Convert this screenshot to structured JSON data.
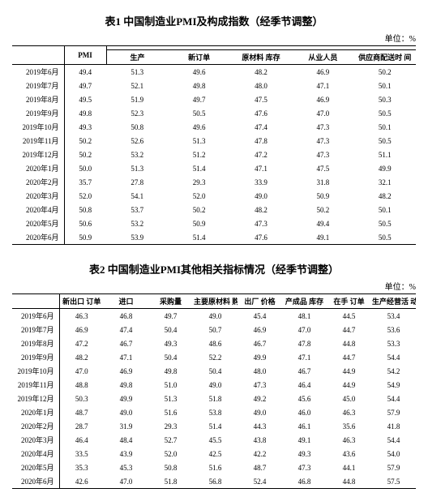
{
  "unit_label": "单位：%",
  "table1": {
    "title": "表1 中国制造业PMI及构成指数（经季节调整）",
    "headers": {
      "pmi": "PMI",
      "production": "生产",
      "new_orders": "新订单",
      "raw_mat_inventory": "原材料\n库存",
      "employment": "从业人员",
      "supplier_delivery": "供应商配送时\n间"
    },
    "rows": [
      {
        "m": "2019年6月",
        "pmi": "49.4",
        "p": "51.3",
        "no": "49.6",
        "rm": "48.2",
        "emp": "46.9",
        "sd": "50.2"
      },
      {
        "m": "2019年7月",
        "pmi": "49.7",
        "p": "52.1",
        "no": "49.8",
        "rm": "48.0",
        "emp": "47.1",
        "sd": "50.1"
      },
      {
        "m": "2019年8月",
        "pmi": "49.5",
        "p": "51.9",
        "no": "49.7",
        "rm": "47.5",
        "emp": "46.9",
        "sd": "50.3"
      },
      {
        "m": "2019年9月",
        "pmi": "49.8",
        "p": "52.3",
        "no": "50.5",
        "rm": "47.6",
        "emp": "47.0",
        "sd": "50.5"
      },
      {
        "m": "2019年10月",
        "pmi": "49.3",
        "p": "50.8",
        "no": "49.6",
        "rm": "47.4",
        "emp": "47.3",
        "sd": "50.1"
      },
      {
        "m": "2019年11月",
        "pmi": "50.2",
        "p": "52.6",
        "no": "51.3",
        "rm": "47.8",
        "emp": "47.3",
        "sd": "50.5"
      },
      {
        "m": "2019年12月",
        "pmi": "50.2",
        "p": "53.2",
        "no": "51.2",
        "rm": "47.2",
        "emp": "47.3",
        "sd": "51.1"
      },
      {
        "m": "2020年1月",
        "pmi": "50.0",
        "p": "51.3",
        "no": "51.4",
        "rm": "47.1",
        "emp": "47.5",
        "sd": "49.9"
      },
      {
        "m": "2020年2月",
        "pmi": "35.7",
        "p": "27.8",
        "no": "29.3",
        "rm": "33.9",
        "emp": "31.8",
        "sd": "32.1"
      },
      {
        "m": "2020年3月",
        "pmi": "52.0",
        "p": "54.1",
        "no": "52.0",
        "rm": "49.0",
        "emp": "50.9",
        "sd": "48.2"
      },
      {
        "m": "2020年4月",
        "pmi": "50.8",
        "p": "53.7",
        "no": "50.2",
        "rm": "48.2",
        "emp": "50.2",
        "sd": "50.1"
      },
      {
        "m": "2020年5月",
        "pmi": "50.6",
        "p": "53.2",
        "no": "50.9",
        "rm": "47.3",
        "emp": "49.4",
        "sd": "50.5"
      },
      {
        "m": "2020年6月",
        "pmi": "50.9",
        "p": "53.9",
        "no": "51.4",
        "rm": "47.6",
        "emp": "49.1",
        "sd": "50.5"
      }
    ]
  },
  "table2": {
    "title": "表2 中国制造业PMI其他相关指标情况（经季节调整）",
    "headers": {
      "new_export_orders": "新出口\n订单",
      "imports": "进口",
      "purchase_qty": "采购量",
      "raw_mat_price": "主要原材料\n购进价格",
      "factory_price": "出厂\n价格",
      "finished_goods": "产成品\n库存",
      "in_hand_orders": "在手\n订单",
      "biz_expectations": "生产经营活\n动预期"
    },
    "rows": [
      {
        "m": "2019年6月",
        "a": "46.3",
        "b": "46.8",
        "c": "49.7",
        "d": "49.0",
        "e": "45.4",
        "f": "48.1",
        "g": "44.5",
        "h": "53.4"
      },
      {
        "m": "2019年7月",
        "a": "46.9",
        "b": "47.4",
        "c": "50.4",
        "d": "50.7",
        "e": "46.9",
        "f": "47.0",
        "g": "44.7",
        "h": "53.6"
      },
      {
        "m": "2019年8月",
        "a": "47.2",
        "b": "46.7",
        "c": "49.3",
        "d": "48.6",
        "e": "46.7",
        "f": "47.8",
        "g": "44.8",
        "h": "53.3"
      },
      {
        "m": "2019年9月",
        "a": "48.2",
        "b": "47.1",
        "c": "50.4",
        "d": "52.2",
        "e": "49.9",
        "f": "47.1",
        "g": "44.7",
        "h": "54.4"
      },
      {
        "m": "2019年10月",
        "a": "47.0",
        "b": "46.9",
        "c": "49.8",
        "d": "50.4",
        "e": "48.0",
        "f": "46.7",
        "g": "44.9",
        "h": "54.2"
      },
      {
        "m": "2019年11月",
        "a": "48.8",
        "b": "49.8",
        "c": "51.0",
        "d": "49.0",
        "e": "47.3",
        "f": "46.4",
        "g": "44.9",
        "h": "54.9"
      },
      {
        "m": "2019年12月",
        "a": "50.3",
        "b": "49.9",
        "c": "51.3",
        "d": "51.8",
        "e": "49.2",
        "f": "45.6",
        "g": "45.0",
        "h": "54.4"
      },
      {
        "m": "2020年1月",
        "a": "48.7",
        "b": "49.0",
        "c": "51.6",
        "d": "53.8",
        "e": "49.0",
        "f": "46.0",
        "g": "46.3",
        "h": "57.9"
      },
      {
        "m": "2020年2月",
        "a": "28.7",
        "b": "31.9",
        "c": "29.3",
        "d": "51.4",
        "e": "44.3",
        "f": "46.1",
        "g": "35.6",
        "h": "41.8"
      },
      {
        "m": "2020年3月",
        "a": "46.4",
        "b": "48.4",
        "c": "52.7",
        "d": "45.5",
        "e": "43.8",
        "f": "49.1",
        "g": "46.3",
        "h": "54.4"
      },
      {
        "m": "2020年4月",
        "a": "33.5",
        "b": "43.9",
        "c": "52.0",
        "d": "42.5",
        "e": "42.2",
        "f": "49.3",
        "g": "43.6",
        "h": "54.0"
      },
      {
        "m": "2020年5月",
        "a": "35.3",
        "b": "45.3",
        "c": "50.8",
        "d": "51.6",
        "e": "48.7",
        "f": "47.3",
        "g": "44.1",
        "h": "57.9"
      },
      {
        "m": "2020年6月",
        "a": "42.6",
        "b": "47.0",
        "c": "51.8",
        "d": "56.8",
        "e": "52.4",
        "f": "46.8",
        "g": "44.8",
        "h": "57.5"
      }
    ]
  }
}
